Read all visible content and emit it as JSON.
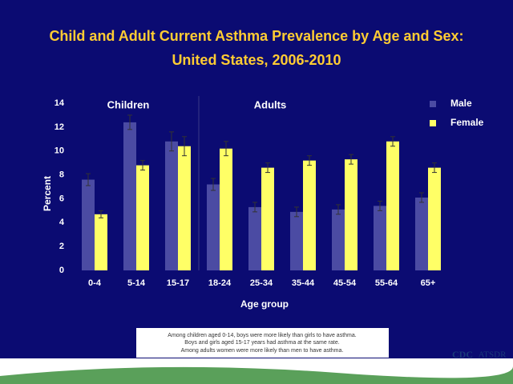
{
  "chart_data": {
    "type": "bar",
    "title": [
      "Child and Adult Current Asthma Prevalence by Age and Sex:",
      "United States, 2006-2010"
    ],
    "x_label": "Age group",
    "y_label": "Percent",
    "categories": [
      "0-4",
      "5-14",
      "15-17",
      "18-24",
      "25-34",
      "35-44",
      "45-54",
      "55-64",
      "65+"
    ],
    "series": [
      {
        "name": "Male",
        "color": "#4b4ba3",
        "values": [
          7.6,
          12.4,
          10.8,
          7.2,
          5.3,
          4.9,
          5.1,
          5.4,
          6.1
        ],
        "errors": [
          0.5,
          0.6,
          0.8,
          0.5,
          0.4,
          0.4,
          0.4,
          0.4,
          0.4
        ]
      },
      {
        "name": "Female",
        "color": "#ffff66",
        "values": [
          4.7,
          8.8,
          10.4,
          10.2,
          8.6,
          9.2,
          9.3,
          10.8,
          8.6
        ],
        "errors": [
          0.3,
          0.4,
          0.8,
          0.6,
          0.4,
          0.4,
          0.4,
          0.4,
          0.4
        ]
      }
    ],
    "ylim": [
      0,
      14
    ],
    "yticks": [
      0,
      2,
      4,
      6,
      8,
      10,
      12,
      14
    ],
    "grid": false,
    "legend": "top-right",
    "annotations": [
      "Children",
      "Adults"
    ],
    "note": [
      "Among children aged 0-14, boys were more likely than girls to have asthma.",
      "Boys and girls aged 15-17 years had asthma at the same rate.",
      "Among adults women were more likely than men to have asthma."
    ],
    "logos": [
      "CDC",
      "ATSDR"
    ]
  }
}
